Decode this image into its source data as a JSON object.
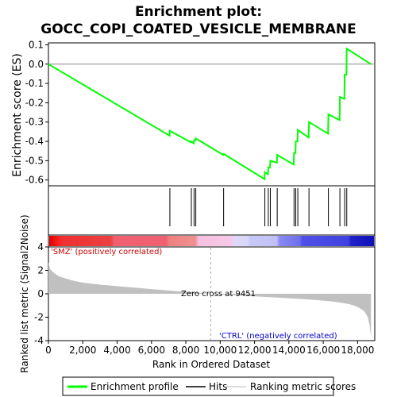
{
  "title_line1": "Enrichment plot:",
  "title_line2": "GOCC_COPI_COATED_VESICLE_MEMBRANE",
  "chart_data": {
    "type": "line",
    "x_label": "Rank in Ordered Dataset",
    "x_range": [
      0,
      19000
    ],
    "x_ticks": [
      0,
      2000,
      4000,
      6000,
      8000,
      10000,
      12000,
      14000,
      16000,
      18000
    ],
    "x_tick_labels": [
      "0",
      "2,000",
      "4,000",
      "6,000",
      "8,000",
      "10,000",
      "12,000",
      "14,000",
      "16,000",
      "18,000"
    ],
    "es_panel": {
      "y_label": "Enrichment score (ES)",
      "y_range": [
        -0.63,
        0.11
      ],
      "y_ticks": [
        0.1,
        0.0,
        -0.1,
        -0.2,
        -0.3,
        -0.4,
        -0.5,
        -0.6
      ],
      "y_tick_labels": [
        "0.1",
        "0.0",
        "-0.1",
        "-0.2",
        "-0.3",
        "-0.4",
        "-0.5",
        "-0.6"
      ],
      "grid": false,
      "series": [
        {
          "name": "Enrichment profile",
          "color": "#00ff00",
          "x": [
            0,
            7050,
            7070,
            8300,
            8320,
            8460,
            8480,
            8560,
            8580,
            10180,
            10200,
            10300,
            12580,
            12600,
            12780,
            12800,
            12900,
            12920,
            13300,
            13320,
            14280,
            14300,
            14380,
            14400,
            14500,
            14520,
            15150,
            15170,
            16280,
            16300,
            16950,
            16970,
            17230,
            17250,
            17350,
            17370,
            18780
          ],
          "y": [
            0.0,
            -0.37,
            -0.345,
            -0.405,
            -0.4,
            -0.41,
            -0.395,
            -0.395,
            -0.385,
            -0.47,
            -0.465,
            -0.47,
            -0.595,
            -0.56,
            -0.57,
            -0.535,
            -0.535,
            -0.5,
            -0.51,
            -0.47,
            -0.52,
            -0.46,
            -0.46,
            -0.4,
            -0.4,
            -0.34,
            -0.38,
            -0.3,
            -0.36,
            -0.26,
            -0.29,
            -0.17,
            -0.18,
            -0.055,
            -0.055,
            0.08,
            0.0
          ]
        }
      ]
    },
    "hits_panel": {
      "series_name": "Hits",
      "hit_positions": [
        7070,
        8320,
        8480,
        8580,
        10200,
        12600,
        12800,
        12920,
        13320,
        14300,
        14400,
        14520,
        15170,
        16300,
        16970,
        17250,
        17370
      ]
    },
    "ranking_panel": {
      "series_name": "Ranking metric scores",
      "y_label": "Ranked list metric (Signal2Noise)",
      "y_range": [
        -4,
        4
      ],
      "y_ticks": [
        4,
        2,
        0,
        -2,
        -4
      ],
      "y_tick_labels": [
        "4",
        "2",
        "0",
        "-2",
        "-4"
      ],
      "x": [
        0,
        100,
        300,
        600,
        1000,
        1500,
        2000,
        3000,
        4000,
        5000,
        6000,
        7000,
        8000,
        9000,
        9451,
        10000,
        11000,
        12000,
        13000,
        14000,
        15000,
        16000,
        16500,
        17000,
        17500,
        17800,
        18100,
        18400,
        18600,
        18700,
        18780
      ],
      "values": [
        2.7,
        2.1,
        1.8,
        1.5,
        1.3,
        1.1,
        0.95,
        0.78,
        0.65,
        0.52,
        0.4,
        0.28,
        0.17,
        0.06,
        0.0,
        -0.06,
        -0.14,
        -0.22,
        -0.3,
        -0.38,
        -0.47,
        -0.58,
        -0.65,
        -0.75,
        -0.88,
        -1.0,
        -1.2,
        -1.5,
        -2.0,
        -2.7,
        -3.7
      ],
      "zero_cross": 9451,
      "zero_cross_label": "Zero cross at 9451",
      "pos_label": "'SMZ' (positively correlated)",
      "neg_label": "'CTRL' (negatively correlated)"
    },
    "legend": {
      "placement": "bottom",
      "entries": [
        "Enrichment profile",
        "Hits",
        "Ranking metric scores"
      ]
    }
  }
}
